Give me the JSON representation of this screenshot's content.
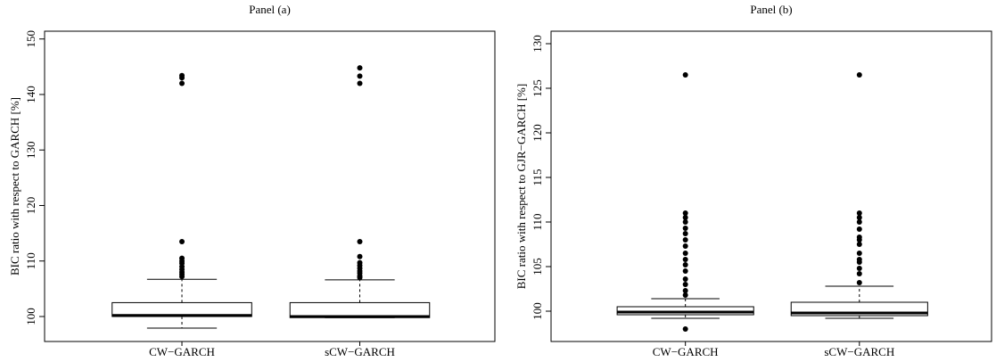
{
  "chart_data": [
    {
      "type": "box",
      "title": "Panel (a)",
      "y_label": "BIC ratio with respect to GARCH [%]",
      "categories": [
        "CW−GARCH",
        "sCW−GARCH"
      ],
      "boxes": [
        {
          "whisker_low": 97.9,
          "q1": 100,
          "median": 100.2,
          "q3": 102.5,
          "whisker_high": 106.7,
          "outliers": [
            107.2,
            107.6,
            108,
            108.5,
            109,
            109.6,
            110,
            110.5,
            113.5,
            142,
            143,
            143.4
          ]
        },
        {
          "whisker_low": 99.8,
          "q1": 99.8,
          "median": 100,
          "q3": 102.5,
          "whisker_high": 106.6,
          "outliers": [
            107,
            107.3,
            107.8,
            108.2,
            108.7,
            109.2,
            109.7,
            110.8,
            113.5,
            142,
            143.3,
            144.8
          ]
        }
      ],
      "ylim": [
        95.5,
        151.4
      ],
      "yticks": [
        100,
        110,
        120,
        130,
        140,
        150
      ]
    },
    {
      "type": "box",
      "title": "Panel (b)",
      "y_label": "BIC ratio with respect to GJR−GARCH [%]",
      "categories": [
        "CW−GARCH",
        "sCW−GARCH"
      ],
      "boxes": [
        {
          "whisker_low": 99.2,
          "q1": 99.6,
          "median": 99.9,
          "q3": 100.5,
          "whisker_high": 101.4,
          "outliers": [
            98,
            101.8,
            102.3,
            103,
            103.6,
            104.5,
            105.2,
            105.8,
            106.5,
            107.3,
            108,
            108.7,
            109.3,
            110,
            110.5,
            111,
            126.5
          ]
        },
        {
          "whisker_low": 99.2,
          "q1": 99.5,
          "median": 99.8,
          "q3": 101,
          "whisker_high": 102.8,
          "outliers": [
            103.2,
            104.2,
            104.8,
            105.5,
            105.8,
            106.5,
            107.5,
            108,
            108.3,
            109.2,
            110,
            110.5,
            111,
            126.5
          ]
        }
      ],
      "ylim": [
        96.6,
        131.4
      ],
      "yticks": [
        100,
        105,
        110,
        115,
        120,
        125,
        130
      ]
    }
  ]
}
